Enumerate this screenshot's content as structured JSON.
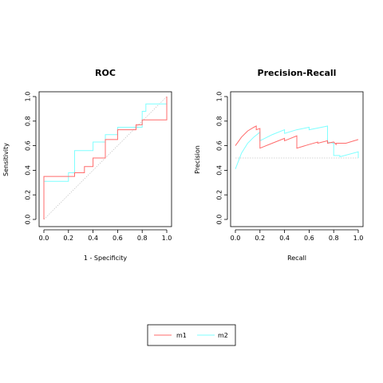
{
  "colors": {
    "m1": "#ff6b6b",
    "m2": "#7fffff",
    "diagonal": "#c8c8c8",
    "frame": "#000000"
  },
  "legend": {
    "entries": [
      "m1",
      "m2"
    ],
    "position": "bottom-center"
  },
  "chart_data": [
    {
      "type": "line",
      "title": "ROC",
      "xlabel": "1 - Specificity",
      "ylabel": "Sensitivity",
      "xlim": [
        0,
        1
      ],
      "ylim": [
        0,
        1
      ],
      "xticks": [
        "0.0",
        "0.2",
        "0.4",
        "0.6",
        "0.8",
        "1.0"
      ],
      "yticks": [
        "0.0",
        "0.2",
        "0.4",
        "0.6",
        "0.8",
        "1.0"
      ],
      "reference_line": "diagonal",
      "series": [
        {
          "name": "m1",
          "x": [
            0,
            0,
            0.25,
            0.25,
            0.33,
            0.33,
            0.4,
            0.4,
            0.5,
            0.5,
            0.6,
            0.6,
            0.75,
            0.75,
            0.8,
            0.8,
            1.0,
            1.0
          ],
          "y": [
            0,
            0.35,
            0.35,
            0.38,
            0.38,
            0.43,
            0.43,
            0.5,
            0.5,
            0.65,
            0.65,
            0.73,
            0.73,
            0.77,
            0.77,
            0.81,
            0.81,
            1.0
          ]
        },
        {
          "name": "m2",
          "x": [
            0,
            0,
            0.2,
            0.2,
            0.25,
            0.25,
            0.4,
            0.4,
            0.5,
            0.5,
            0.6,
            0.6,
            0.75,
            0.75,
            0.8,
            0.8,
            0.83,
            0.83,
            1.0,
            1.0
          ],
          "y": [
            0,
            0.31,
            0.31,
            0.38,
            0.38,
            0.56,
            0.56,
            0.63,
            0.63,
            0.69,
            0.69,
            0.75,
            0.75,
            0.75,
            0.75,
            0.88,
            0.88,
            0.94,
            0.94,
            1.0
          ]
        }
      ]
    },
    {
      "type": "line",
      "title": "Precision-Recall",
      "xlabel": "Recall",
      "ylabel": "Precision",
      "xlim": [
        0,
        1
      ],
      "ylim": [
        0,
        1
      ],
      "xticks": [
        "0.0",
        "0.2",
        "0.4",
        "0.6",
        "0.8",
        "1.0"
      ],
      "yticks": [
        "0.0",
        "0.2",
        "0.4",
        "0.6",
        "0.8",
        "1.0"
      ],
      "baseline": 0.5,
      "series": [
        {
          "name": "m1",
          "x": [
            0,
            0.05,
            0.1,
            0.15,
            0.17,
            0.17,
            0.2,
            0.2,
            0.3,
            0.4,
            0.4,
            0.5,
            0.5,
            0.6,
            0.67,
            0.67,
            0.75,
            0.75,
            0.8,
            0.82,
            0.82,
            0.9,
            1.0
          ],
          "y": [
            0.6,
            0.67,
            0.72,
            0.75,
            0.76,
            0.73,
            0.74,
            0.58,
            0.62,
            0.66,
            0.64,
            0.68,
            0.58,
            0.61,
            0.63,
            0.62,
            0.64,
            0.62,
            0.63,
            0.61,
            0.62,
            0.62,
            0.65
          ]
        },
        {
          "name": "m2",
          "x": [
            0,
            0.05,
            0.1,
            0.15,
            0.2,
            0.2,
            0.3,
            0.4,
            0.4,
            0.5,
            0.6,
            0.6,
            0.75,
            0.75,
            0.8,
            0.8,
            0.85,
            0.85,
            1.0,
            1.0
          ],
          "y": [
            0.41,
            0.54,
            0.62,
            0.67,
            0.71,
            0.64,
            0.69,
            0.73,
            0.7,
            0.73,
            0.75,
            0.73,
            0.76,
            0.63,
            0.62,
            0.52,
            0.52,
            0.51,
            0.55,
            0.5
          ]
        }
      ]
    }
  ]
}
